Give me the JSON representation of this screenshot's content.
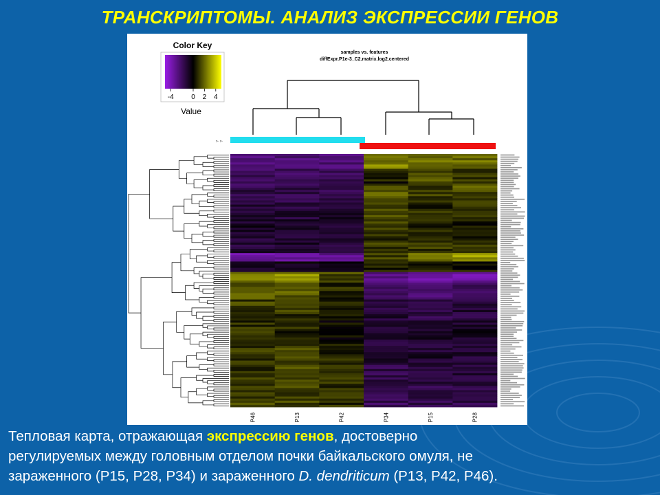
{
  "slide": {
    "title": "ТРАНСКРИПТОМЫ. АНАЛИЗ ЭКСПРЕССИИ ГЕНОВ",
    "caption": {
      "line1_a": "Тепловая карта, отражающая ",
      "line1_highlight": "экспрессию генов",
      "line1_b": ", достоверно",
      "line2": "регулируемых между головным отделом почки байкальского омуля, не",
      "line3_a": "зараженного (P15, P28, P34) и зараженного ",
      "line3_italic": "D. dendriticum",
      "line3_b": " (P13, P42, P46)."
    },
    "colors": {
      "background": "#0d62a8",
      "title": "#ffff00",
      "caption_text": "#ffffff",
      "caption_highlight": "#ffff00"
    }
  },
  "chart_data": {
    "type": "heatmap",
    "title": "samples vs. features",
    "subtitle": "diffExpr.P1e-3_C2.matrix.log2.centered",
    "color_key": {
      "title": "Color Key",
      "label": "Value",
      "ticks": [
        "-4",
        "0",
        "2",
        "4"
      ],
      "range": [
        -5,
        5
      ],
      "colors": [
        "#9a1ee6",
        "#000000",
        "#ffff00"
      ]
    },
    "columns": [
      "P46",
      "P13",
      "P42",
      "P34",
      "P15",
      "P28"
    ],
    "column_groups": [
      {
        "members": [
          "P46",
          "P13",
          "P42"
        ],
        "color": "#22ddee"
      },
      {
        "members": [
          "P34",
          "P15",
          "P28"
        ],
        "color": "#ee1111"
      }
    ],
    "side_labels": [
      "?",
      "?"
    ],
    "row_count": 120,
    "row_blocks": [
      {
        "rows": 7,
        "values": [
          -2.5,
          -2.5,
          -2.5,
          2.5,
          2.0,
          2.0
        ]
      },
      {
        "rows": 8,
        "values": [
          -2.0,
          -2.0,
          -1.8,
          0.5,
          1.5,
          1.0
        ]
      },
      {
        "rows": 8,
        "values": [
          -1.5,
          -1.5,
          -1.5,
          1.8,
          1.2,
          1.5
        ]
      },
      {
        "rows": 8,
        "values": [
          -1.0,
          -1.2,
          -1.0,
          1.2,
          0.8,
          0.8
        ]
      },
      {
        "rows": 8,
        "values": [
          -0.8,
          -0.8,
          -0.8,
          1.0,
          0.6,
          0.6
        ]
      },
      {
        "rows": 8,
        "values": [
          -1.2,
          -1.0,
          -1.2,
          1.0,
          1.0,
          0.8
        ]
      },
      {
        "rows": 4,
        "values": [
          -3.5,
          -3.5,
          -3.0,
          1.2,
          2.5,
          3.0
        ]
      },
      {
        "rows": 5,
        "values": [
          -0.5,
          -0.5,
          -0.5,
          0.8,
          0.5,
          0.5
        ]
      },
      {
        "rows": 5,
        "values": [
          2.5,
          2.8,
          1.5,
          -3.0,
          -3.5,
          -3.5
        ]
      },
      {
        "rows": 8,
        "values": [
          1.8,
          1.8,
          0.8,
          -2.0,
          -2.2,
          -2.0
        ]
      },
      {
        "rows": 10,
        "values": [
          1.2,
          1.0,
          0.4,
          -1.2,
          -1.5,
          -1.2
        ]
      },
      {
        "rows": 10,
        "values": [
          0.8,
          0.8,
          0.2,
          -1.0,
          -1.0,
          -0.8
        ]
      },
      {
        "rows": 10,
        "values": [
          1.0,
          1.2,
          0.6,
          -1.2,
          -1.0,
          -1.0
        ]
      },
      {
        "rows": 10,
        "values": [
          0.9,
          1.5,
          1.0,
          -1.5,
          -1.2,
          -1.2
        ]
      },
      {
        "rows": 11,
        "values": [
          1.2,
          1.2,
          0.8,
          -1.8,
          -1.5,
          -1.5
        ]
      }
    ],
    "column_dendrogram": {
      "groups": 2,
      "leaves": 6
    },
    "legend": "top-left",
    "grid": false
  }
}
